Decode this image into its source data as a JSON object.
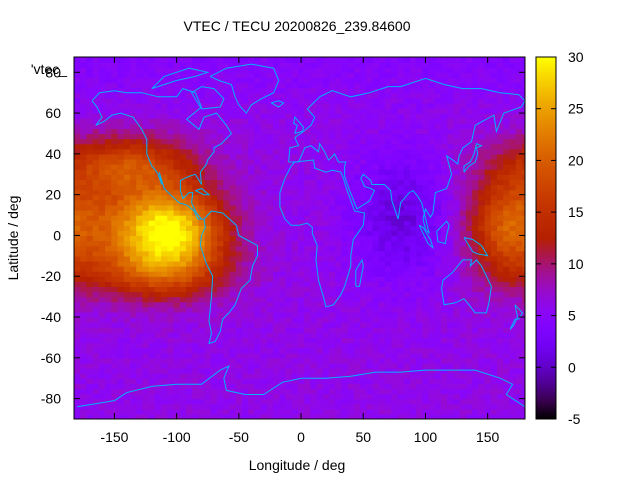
{
  "chart_data": {
    "type": "heatmap",
    "title": "VTEC / TECU 20200826_239.84600",
    "xlabel": "Longitude / deg",
    "ylabel": "Latitude / deg",
    "xlim": [
      -182.5,
      180
    ],
    "ylim": [
      -90,
      87.5
    ],
    "xticks": [
      -150,
      -100,
      -50,
      0,
      50,
      100,
      150
    ],
    "yticks": [
      -80,
      -60,
      -40,
      -20,
      0,
      20,
      40,
      60,
      80
    ],
    "colorbar": {
      "range": [
        -5,
        30
      ],
      "ticks": [
        -5,
        0,
        5,
        10,
        15,
        20,
        25,
        30
      ],
      "colormap": "black-purple-red-orange-yellow"
    },
    "legend_entry": "'vtec_",
    "grid": false,
    "overlay": "coastlines",
    "coastline_color": "#00b3ff",
    "features": [
      {
        "name": "american-equatorial-anomaly",
        "lon": -100,
        "lat": 3,
        "peak_tecu": 29
      },
      {
        "name": "north-america-band",
        "lon": -140,
        "lat": 35,
        "peak_tecu": 17
      },
      {
        "name": "pacific-anomaly",
        "lon": 165,
        "lat": 5,
        "peak_tecu": 18
      },
      {
        "name": "indian-ocean-minimum",
        "lon": 80,
        "lat": 10,
        "peak_tecu": 1
      },
      {
        "name": "background",
        "peak_tecu": 6
      }
    ]
  }
}
